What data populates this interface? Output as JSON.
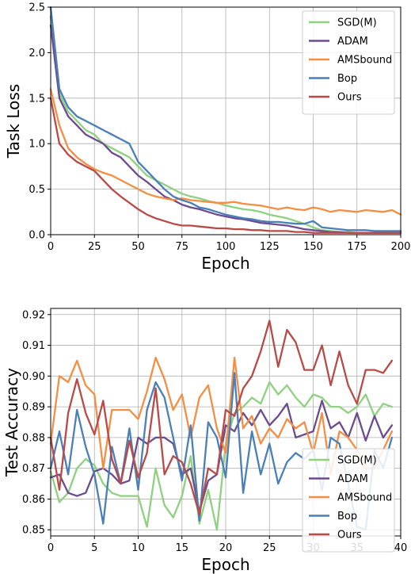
{
  "colors": {
    "SGD(M)": "#8ed17e",
    "ADAM": "#6b4c8e",
    "AMSbound": "#f58e43",
    "Bop": "#4a7fb8",
    "Ours": "#b84a48"
  },
  "chart_data": [
    {
      "type": "line",
      "xlabel": "Epoch",
      "ylabel": "Task Loss",
      "xlim": [
        0,
        200
      ],
      "ylim": [
        0,
        2.5
      ],
      "xticks": [
        "0",
        "25",
        "50",
        "75",
        "100",
        "125",
        "150",
        "175",
        "200"
      ],
      "yticks": [
        "0.0",
        "0.5",
        "1.0",
        "1.5",
        "2.0",
        "2.5"
      ],
      "grid": true,
      "legend_position": "top-right",
      "legend": [
        "SGD(M)",
        "ADAM",
        "AMSbound",
        "Bop",
        "Ours"
      ],
      "x": [
        0,
        5,
        10,
        15,
        20,
        25,
        30,
        35,
        40,
        45,
        50,
        55,
        60,
        65,
        70,
        75,
        80,
        85,
        90,
        95,
        100,
        105,
        110,
        115,
        120,
        125,
        130,
        135,
        140,
        145,
        150,
        155,
        160,
        165,
        170,
        175,
        180,
        185,
        190,
        195,
        200
      ],
      "series": [
        {
          "name": "SGD(M)",
          "values": [
            2.4,
            1.55,
            1.35,
            1.25,
            1.15,
            1.1,
            1.0,
            0.95,
            0.9,
            0.85,
            0.75,
            0.65,
            0.6,
            0.55,
            0.5,
            0.45,
            0.42,
            0.4,
            0.37,
            0.35,
            0.32,
            0.3,
            0.28,
            0.27,
            0.25,
            0.22,
            0.2,
            0.18,
            0.15,
            0.12,
            0.08,
            0.05,
            0.04,
            0.03,
            0.03,
            0.02,
            0.02,
            0.02,
            0.02,
            0.02,
            0.02
          ]
        },
        {
          "name": "ADAM",
          "values": [
            2.3,
            1.5,
            1.3,
            1.2,
            1.1,
            1.05,
            1.0,
            0.9,
            0.85,
            0.75,
            0.65,
            0.58,
            0.5,
            0.42,
            0.38,
            0.33,
            0.3,
            0.28,
            0.25,
            0.22,
            0.2,
            0.18,
            0.17,
            0.15,
            0.13,
            0.12,
            0.11,
            0.1,
            0.08,
            0.06,
            0.05,
            0.04,
            0.03,
            0.03,
            0.02,
            0.02,
            0.02,
            0.02,
            0.02,
            0.02,
            0.02
          ]
        },
        {
          "name": "AMSbound",
          "values": [
            1.6,
            1.2,
            0.95,
            0.85,
            0.78,
            0.72,
            0.68,
            0.65,
            0.6,
            0.55,
            0.5,
            0.45,
            0.42,
            0.4,
            0.38,
            0.4,
            0.38,
            0.37,
            0.36,
            0.35,
            0.35,
            0.36,
            0.34,
            0.33,
            0.32,
            0.3,
            0.28,
            0.3,
            0.28,
            0.27,
            0.3,
            0.28,
            0.25,
            0.27,
            0.26,
            0.25,
            0.27,
            0.26,
            0.25,
            0.27,
            0.22
          ]
        },
        {
          "name": "Bop",
          "values": [
            2.5,
            1.6,
            1.4,
            1.3,
            1.25,
            1.2,
            1.15,
            1.1,
            1.05,
            1.0,
            0.8,
            0.7,
            0.6,
            0.5,
            0.42,
            0.38,
            0.35,
            0.3,
            0.28,
            0.25,
            0.22,
            0.2,
            0.18,
            0.17,
            0.15,
            0.14,
            0.14,
            0.13,
            0.12,
            0.12,
            0.15,
            0.08,
            0.07,
            0.06,
            0.05,
            0.05,
            0.05,
            0.04,
            0.04,
            0.04,
            0.04
          ]
        },
        {
          "name": "Ours",
          "values": [
            1.5,
            1.0,
            0.88,
            0.8,
            0.75,
            0.7,
            0.6,
            0.5,
            0.42,
            0.35,
            0.28,
            0.22,
            0.18,
            0.15,
            0.12,
            0.1,
            0.1,
            0.09,
            0.08,
            0.07,
            0.07,
            0.06,
            0.06,
            0.05,
            0.05,
            0.04,
            0.04,
            0.04,
            0.03,
            0.03,
            0.02,
            0.02,
            0.02,
            0.02,
            0.02,
            0.02,
            0.02,
            0.02,
            0.02,
            0.02,
            0.02
          ]
        }
      ]
    },
    {
      "type": "line",
      "xlabel": "Epoch",
      "ylabel": "Test Accuracy",
      "xlim": [
        0,
        40
      ],
      "ylim": [
        0.848,
        0.922
      ],
      "xticks": [
        "0",
        "5",
        "10",
        "15",
        "20",
        "25",
        "30",
        "35",
        "40"
      ],
      "yticks": [
        "0.85",
        "0.86",
        "0.87",
        "0.88",
        "0.89",
        "0.90",
        "0.91",
        "0.92"
      ],
      "grid": true,
      "legend_position": "bottom-right",
      "legend": [
        "SGD(M)",
        "ADAM",
        "AMSbound",
        "Bop",
        "Ours"
      ],
      "x": [
        0,
        1,
        2,
        3,
        4,
        5,
        6,
        7,
        8,
        9,
        10,
        11,
        12,
        13,
        14,
        15,
        16,
        17,
        18,
        19,
        20,
        21,
        22,
        23,
        24,
        25,
        26,
        27,
        28,
        29,
        30,
        31,
        32,
        33,
        34,
        35,
        36,
        37,
        38,
        39
      ],
      "series": [
        {
          "name": "SGD(M)",
          "values": [
            0.869,
            0.859,
            0.862,
            0.87,
            0.873,
            0.871,
            0.865,
            0.862,
            0.861,
            0.861,
            0.861,
            0.851,
            0.87,
            0.858,
            0.854,
            0.861,
            0.874,
            0.852,
            0.863,
            0.85,
            0.878,
            0.888,
            0.89,
            0.893,
            0.891,
            0.898,
            0.894,
            0.897,
            0.893,
            0.89,
            0.894,
            0.893,
            0.89,
            0.89,
            0.888,
            0.89,
            0.894,
            0.887,
            0.891,
            0.89
          ]
        },
        {
          "name": "ADAM",
          "values": [
            0.867,
            0.868,
            0.862,
            0.861,
            0.862,
            0.869,
            0.87,
            0.868,
            0.865,
            0.866,
            0.88,
            0.878,
            0.88,
            0.88,
            0.878,
            0.868,
            0.87,
            0.856,
            0.866,
            0.868,
            0.884,
            0.882,
            0.888,
            0.884,
            0.889,
            0.884,
            0.887,
            0.891,
            0.88,
            0.881,
            0.882,
            0.892,
            0.883,
            0.885,
            0.88,
            0.888,
            0.879,
            0.887,
            0.88,
            0.884
          ]
        },
        {
          "name": "AMSbound",
          "values": [
            0.878,
            0.9,
            0.898,
            0.905,
            0.897,
            0.894,
            0.87,
            0.889,
            0.889,
            0.889,
            0.886,
            0.895,
            0.906,
            0.899,
            0.889,
            0.894,
            0.88,
            0.893,
            0.897,
            0.883,
            0.875,
            0.906,
            0.883,
            0.887,
            0.878,
            0.883,
            0.88,
            0.886,
            0.883,
            0.885,
            0.875,
            0.888,
            0.868,
            0.882,
            0.88,
            0.876,
            0.87,
            0.87,
            0.876,
            0.882
          ]
        },
        {
          "name": "Bop",
          "values": [
            0.87,
            0.882,
            0.868,
            0.889,
            0.877,
            0.868,
            0.852,
            0.877,
            0.865,
            0.883,
            0.863,
            0.889,
            0.898,
            0.893,
            0.88,
            0.866,
            0.884,
            0.853,
            0.885,
            0.88,
            0.867,
            0.901,
            0.862,
            0.882,
            0.868,
            0.878,
            0.865,
            0.872,
            0.875,
            0.873,
            0.876,
            0.863,
            0.88,
            0.878,
            0.865,
            0.851,
            0.85,
            0.876,
            0.87,
            0.88
          ]
        },
        {
          "name": "Ours",
          "values": [
            0.88,
            0.863,
            0.888,
            0.899,
            0.888,
            0.881,
            0.892,
            0.873,
            0.865,
            0.879,
            0.867,
            0.875,
            0.896,
            0.868,
            0.874,
            0.872,
            0.865,
            0.855,
            0.87,
            0.868,
            0.889,
            0.887,
            0.896,
            0.9,
            0.908,
            0.918,
            0.903,
            0.915,
            0.911,
            0.902,
            0.902,
            0.91,
            0.897,
            0.908,
            0.897,
            0.891,
            0.902,
            0.902,
            0.901,
            0.905
          ]
        }
      ]
    }
  ]
}
